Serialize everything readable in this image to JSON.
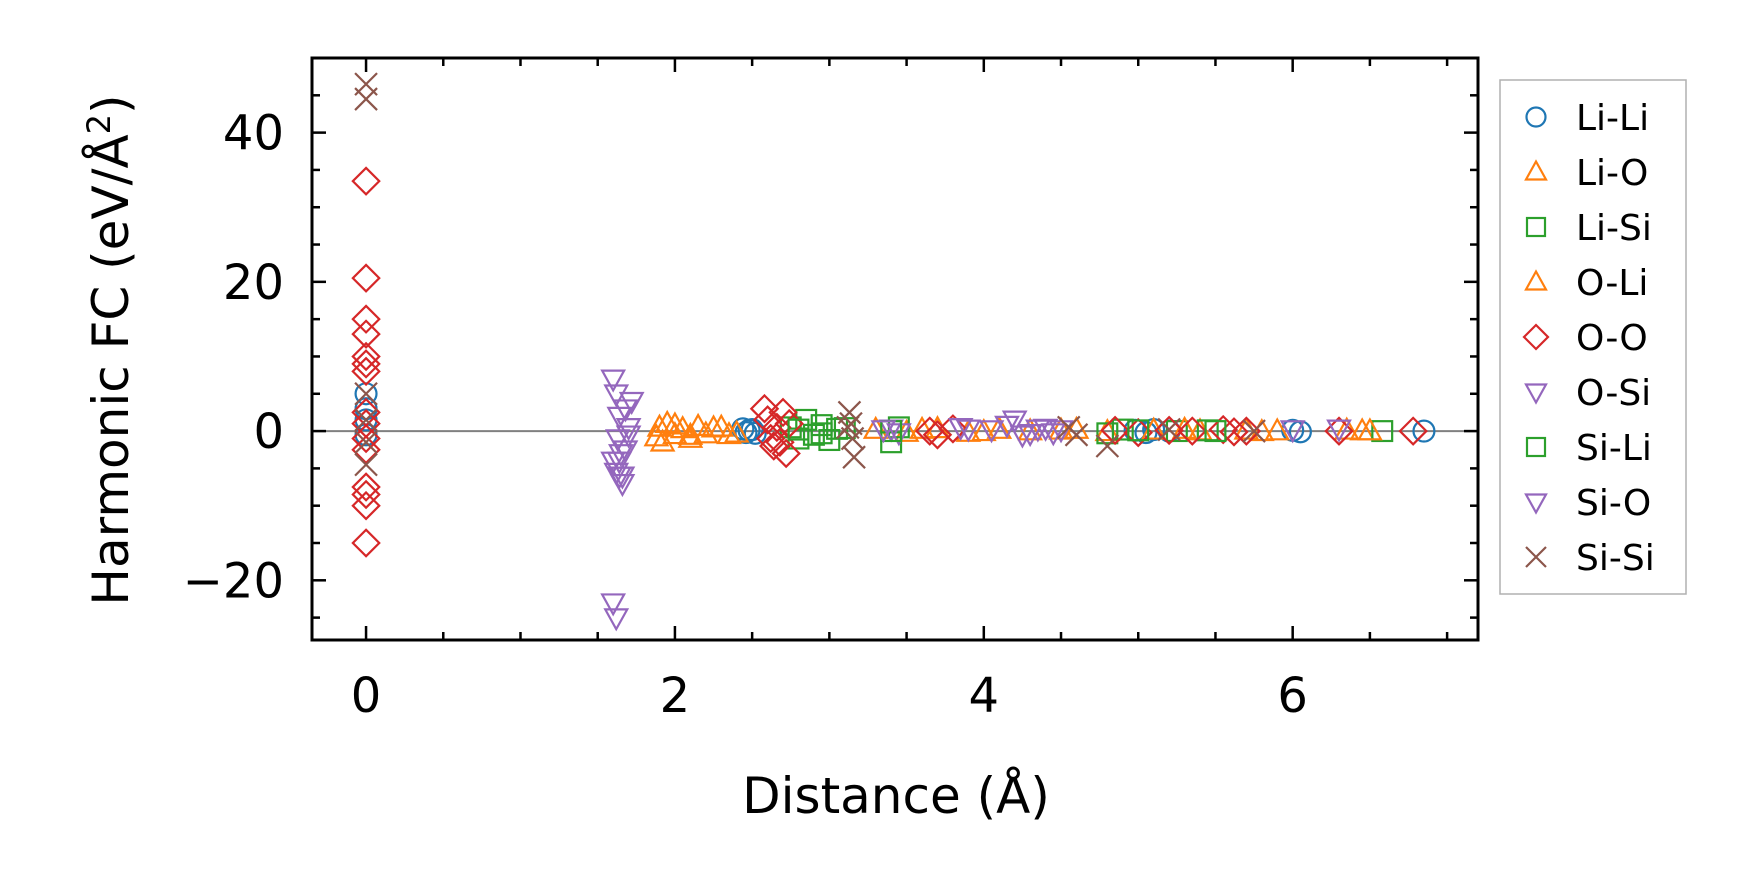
{
  "chart_data": {
    "type": "scatter",
    "title": "",
    "xlabel": "Distance (Å)",
    "ylabel_main": "Harmonic FC (eV/Å",
    "ylabel_sup": "2",
    "ylabel_end": ")",
    "xlim": [
      -0.35,
      7.2
    ],
    "ylim": [
      -28,
      50
    ],
    "xticks": [
      0,
      2,
      4,
      6
    ],
    "xtick_labels": [
      "0",
      "2",
      "4",
      "6"
    ],
    "yticks": [
      -20,
      0,
      20,
      40
    ],
    "ytick_labels": [
      "−20",
      "0",
      "20",
      "40"
    ],
    "zero_line": true,
    "legend_position": "outside-right",
    "series": [
      {
        "name": "Li-Li",
        "marker": "circle",
        "color": "#1f77b4",
        "points": [
          [
            0,
            5
          ],
          [
            0,
            3
          ],
          [
            0,
            1.5
          ],
          [
            0,
            -0.5
          ],
          [
            2.44,
            0.3
          ],
          [
            2.46,
            -0.2
          ],
          [
            2.48,
            0.1
          ],
          [
            2.5,
            0.2
          ],
          [
            2.52,
            -0.3
          ],
          [
            4.98,
            0.1
          ],
          [
            5.05,
            -0.2
          ],
          [
            5.1,
            0.2
          ],
          [
            5.2,
            0
          ],
          [
            6.0,
            0.1
          ],
          [
            6.05,
            -0.1
          ],
          [
            6.85,
            0
          ]
        ]
      },
      {
        "name": "Li-O",
        "marker": "triangle-up",
        "color": "#ff7f0e",
        "points": [
          [
            1.88,
            -0.8
          ],
          [
            1.9,
            0.5
          ],
          [
            1.92,
            -1.5
          ],
          [
            1.95,
            1
          ],
          [
            2.0,
            -0.5
          ],
          [
            2.05,
            0.3
          ],
          [
            2.1,
            -1
          ],
          [
            2.15,
            0.6
          ],
          [
            2.2,
            -0.4
          ],
          [
            2.3,
            0.5
          ],
          [
            2.4,
            -0.3
          ],
          [
            3.3,
            0.2
          ],
          [
            3.5,
            -0.2
          ],
          [
            3.7,
            0.3
          ],
          [
            3.9,
            -0.2
          ],
          [
            4.1,
            0.2
          ],
          [
            4.3,
            0
          ],
          [
            4.6,
            0.2
          ],
          [
            4.8,
            -0.1
          ],
          [
            5.1,
            0.1
          ],
          [
            5.4,
            0
          ],
          [
            5.7,
            0.1
          ],
          [
            5.9,
            0
          ],
          [
            6.35,
            0.1
          ],
          [
            6.45,
            0
          ]
        ]
      },
      {
        "name": "Li-Si",
        "marker": "square",
        "color": "#2ca02c",
        "points": [
          [
            2.75,
            0.5
          ],
          [
            2.8,
            -1
          ],
          [
            2.85,
            1.5
          ],
          [
            2.9,
            -0.5
          ],
          [
            2.95,
            0.8
          ],
          [
            3.0,
            -1.2
          ],
          [
            3.05,
            0.3
          ],
          [
            3.4,
            -1.5
          ],
          [
            3.45,
            0.5
          ],
          [
            4.8,
            -0.3
          ],
          [
            4.9,
            0.2
          ],
          [
            5.25,
            0
          ],
          [
            5.45,
            0.1
          ],
          [
            6.58,
            0
          ]
        ]
      },
      {
        "name": "O-Li",
        "marker": "triangle-up",
        "color": "#ff7f0e",
        "points": [
          [
            2.0,
            0.8
          ],
          [
            2.1,
            -0.6
          ],
          [
            2.25,
            0.4
          ],
          [
            2.35,
            -0.5
          ],
          [
            3.6,
            0.2
          ],
          [
            4.0,
            -0.1
          ],
          [
            4.5,
            0.1
          ],
          [
            5.3,
            0.2
          ],
          [
            5.8,
            -0.1
          ],
          [
            6.5,
            0
          ]
        ]
      },
      {
        "name": "O-O",
        "marker": "diamond",
        "color": "#d62728",
        "points": [
          [
            0,
            33.5
          ],
          [
            0,
            20.5
          ],
          [
            0,
            15
          ],
          [
            0,
            13
          ],
          [
            0,
            10
          ],
          [
            0,
            9
          ],
          [
            0,
            8
          ],
          [
            0,
            2.5
          ],
          [
            0,
            1
          ],
          [
            0,
            -1
          ],
          [
            0,
            -2.5
          ],
          [
            0,
            -7.5
          ],
          [
            0,
            -8.5
          ],
          [
            0,
            -10
          ],
          [
            0,
            -15
          ],
          [
            2.58,
            3
          ],
          [
            2.6,
            1.5
          ],
          [
            2.62,
            -1
          ],
          [
            2.64,
            -2
          ],
          [
            2.66,
            0.5
          ],
          [
            2.68,
            -1.5
          ],
          [
            2.7,
            2.5
          ],
          [
            2.72,
            -3
          ],
          [
            2.74,
            1
          ],
          [
            3.65,
            0
          ],
          [
            3.7,
            -0.5
          ],
          [
            3.8,
            0.3
          ],
          [
            4.85,
            0.1
          ],
          [
            5.0,
            -0.2
          ],
          [
            5.2,
            0.1
          ],
          [
            5.35,
            0
          ],
          [
            5.55,
            0.2
          ],
          [
            5.62,
            -0.1
          ],
          [
            5.7,
            0
          ],
          [
            6.3,
            0
          ],
          [
            6.78,
            0
          ]
        ]
      },
      {
        "name": "O-Si",
        "marker": "triangle-down",
        "color": "#9467bd",
        "points": [
          [
            1.6,
            7
          ],
          [
            1.62,
            5
          ],
          [
            1.64,
            2
          ],
          [
            1.63,
            -1
          ],
          [
            1.65,
            -3
          ],
          [
            1.6,
            -4
          ],
          [
            1.62,
            -5.5
          ],
          [
            1.64,
            -6
          ],
          [
            1.66,
            -7
          ],
          [
            1.68,
            -2.5
          ],
          [
            1.7,
            0.5
          ],
          [
            1.72,
            4
          ],
          [
            1.6,
            -23
          ],
          [
            1.62,
            -25
          ],
          [
            3.4,
            0.3
          ],
          [
            3.45,
            -0.2
          ],
          [
            3.85,
            0.5
          ],
          [
            4.15,
            0.8
          ],
          [
            4.3,
            -0.3
          ],
          [
            4.4,
            0.4
          ],
          [
            4.45,
            -0.2
          ]
        ]
      },
      {
        "name": "Si-Li",
        "marker": "square",
        "color": "#2ca02c",
        "points": [
          [
            2.8,
            0.2
          ],
          [
            2.95,
            -0.3
          ],
          [
            3.1,
            0.4
          ],
          [
            3.4,
            0
          ],
          [
            5.0,
            0.1
          ],
          [
            5.5,
            0
          ]
        ]
      },
      {
        "name": "Si-O",
        "marker": "triangle-down",
        "color": "#9467bd",
        "points": [
          [
            1.64,
            -4
          ],
          [
            1.66,
            -6
          ],
          [
            1.68,
            3
          ],
          [
            1.7,
            -0.5
          ],
          [
            3.35,
            0.2
          ],
          [
            3.9,
            0.3
          ],
          [
            4.05,
            0.2
          ],
          [
            4.2,
            1.5
          ],
          [
            4.25,
            -0.5
          ],
          [
            4.35,
            0.3
          ],
          [
            4.5,
            0.2
          ],
          [
            6.0,
            0.2
          ],
          [
            6.3,
            0.3
          ]
        ]
      },
      {
        "name": "Si-Si",
        "marker": "x",
        "color": "#8c564b",
        "points": [
          [
            0,
            46.5
          ],
          [
            0,
            44.5
          ],
          [
            0,
            5
          ],
          [
            0,
            1.5
          ],
          [
            0,
            -1.5
          ],
          [
            0,
            -4.5
          ],
          [
            3.13,
            2.5
          ],
          [
            3.14,
            1
          ],
          [
            3.15,
            -1
          ],
          [
            3.16,
            -3.5
          ],
          [
            3.12,
            0.5
          ],
          [
            4.55,
            0.5
          ],
          [
            4.6,
            -0.5
          ],
          [
            4.8,
            -2
          ],
          [
            5.2,
            0.2
          ],
          [
            5.75,
            0
          ]
        ]
      }
    ]
  }
}
